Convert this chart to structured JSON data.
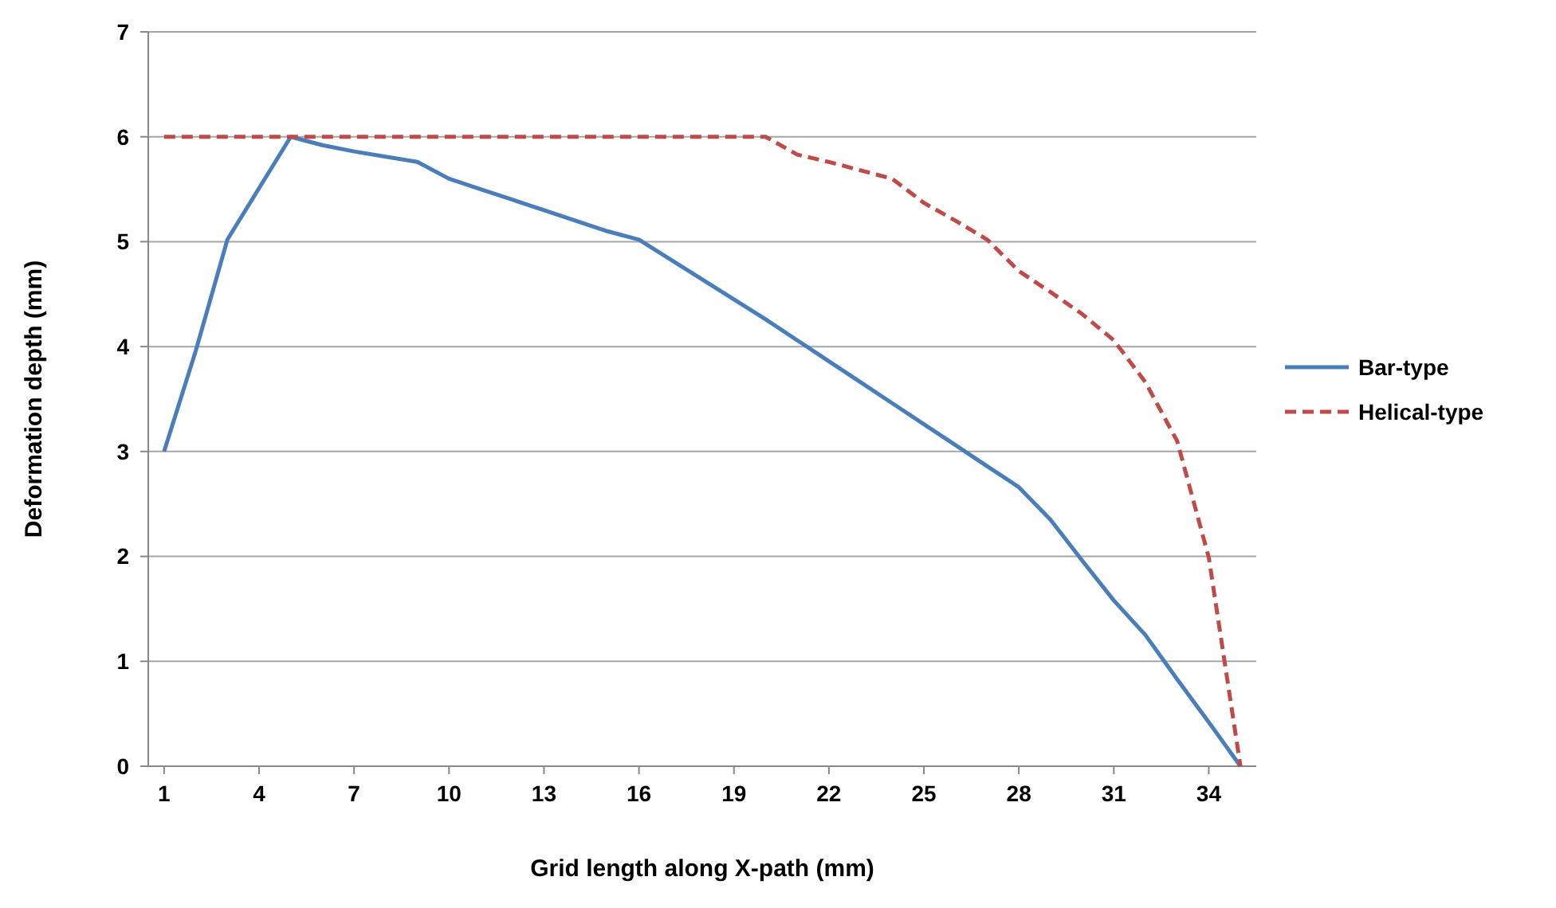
{
  "chart_data": {
    "type": "line",
    "xlabel": "Grid length along X-path (mm)",
    "ylabel": "Deformation depth (mm)",
    "x": [
      1,
      2,
      3,
      4,
      5,
      6,
      7,
      8,
      9,
      10,
      11,
      12,
      13,
      14,
      15,
      16,
      17,
      18,
      19,
      20,
      21,
      22,
      23,
      24,
      25,
      26,
      27,
      28,
      29,
      30,
      31,
      32,
      33,
      34,
      35
    ],
    "xlim": [
      0.5,
      35.5
    ],
    "xticks": [
      1,
      4,
      7,
      10,
      13,
      16,
      19,
      22,
      25,
      28,
      31,
      34
    ],
    "ylim": [
      0,
      7
    ],
    "yticks": [
      0,
      1,
      2,
      3,
      4,
      5,
      6,
      7
    ],
    "grid": "y",
    "legend": "right",
    "series": [
      {
        "name": "Bar-type",
        "color": "#4a7ebb",
        "line_style": "solid",
        "values": [
          3.0,
          3.96,
          5.02,
          5.51,
          6.0,
          5.92,
          5.86,
          5.81,
          5.76,
          5.6,
          5.5,
          5.4,
          5.3,
          5.2,
          5.1,
          5.02,
          4.83,
          4.64,
          4.45,
          4.26,
          4.06,
          3.86,
          3.66,
          3.46,
          3.26,
          3.06,
          2.86,
          2.66,
          2.35,
          1.96,
          1.58,
          1.25,
          0.83,
          0.42,
          0
        ]
      },
      {
        "name": "Helical-type",
        "color": "#be4b48",
        "line_style": "dashed",
        "values": [
          6,
          6,
          6,
          6,
          6,
          6,
          6,
          6,
          6,
          6,
          6,
          6,
          6,
          6,
          6,
          6,
          6,
          6,
          6,
          6,
          5.83,
          5.76,
          5.68,
          5.6,
          5.37,
          5.2,
          5.02,
          4.72,
          4.52,
          4.31,
          4.06,
          3.66,
          3.1,
          1.99,
          0
        ]
      }
    ]
  }
}
